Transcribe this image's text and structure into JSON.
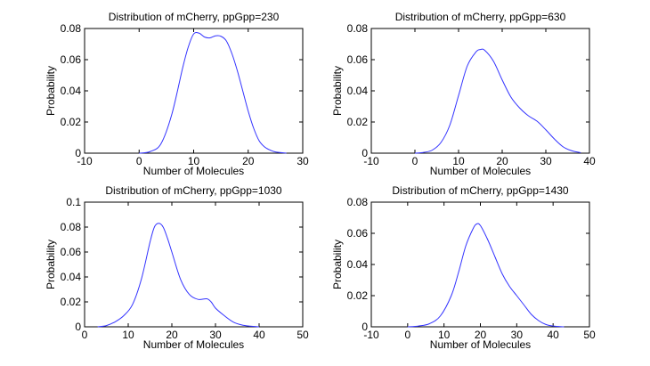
{
  "chart_data": [
    {
      "type": "line",
      "title": "Distribution of mCherry, ppGpp=230",
      "xlabel": "Number of Molecules",
      "ylabel": "Probability",
      "xlim": [
        -10,
        30
      ],
      "ylim": [
        0,
        0.08
      ],
      "xticks": [
        "-10",
        "0",
        "10",
        "20",
        "30"
      ],
      "yticks": [
        "0",
        "0.02",
        "0.04",
        "0.06",
        "0.08"
      ],
      "line_color": "#3333ff",
      "grid": false,
      "x": [
        0,
        2,
        4,
        6,
        8,
        9,
        10,
        11,
        12,
        13,
        14,
        15,
        16,
        17,
        18,
        19,
        20,
        21,
        22,
        23,
        24,
        25,
        27
      ],
      "y": [
        0.0,
        0.001,
        0.006,
        0.025,
        0.055,
        0.068,
        0.0765,
        0.077,
        0.0745,
        0.074,
        0.0753,
        0.075,
        0.072,
        0.064,
        0.053,
        0.04,
        0.027,
        0.016,
        0.008,
        0.004,
        0.002,
        0.0008,
        0.0
      ]
    },
    {
      "type": "line",
      "title": "Distribution of mCherry, ppGpp=630",
      "xlabel": "Number of Molecules",
      "ylabel": "Probability",
      "xlim": [
        -10,
        40
      ],
      "ylim": [
        0,
        0.08
      ],
      "xticks": [
        "-10",
        "0",
        "10",
        "20",
        "30",
        "40"
      ],
      "yticks": [
        "0",
        "0.02",
        "0.04",
        "0.06",
        "0.08"
      ],
      "line_color": "#3333ff",
      "grid": false,
      "x": [
        0,
        2,
        4,
        6,
        8,
        10,
        12,
        14,
        15,
        16,
        18,
        20,
        22,
        24,
        26,
        28,
        30,
        32,
        34,
        36,
        38
      ],
      "y": [
        0.0,
        0.0005,
        0.002,
        0.007,
        0.018,
        0.037,
        0.056,
        0.065,
        0.0665,
        0.066,
        0.059,
        0.047,
        0.036,
        0.029,
        0.024,
        0.0205,
        0.015,
        0.009,
        0.004,
        0.0015,
        0.0003
      ]
    },
    {
      "type": "line",
      "title": "Distribution of mCherry, ppGpp=1030",
      "xlabel": "Number of Molecules",
      "ylabel": "Probability",
      "xlim": [
        0,
        50
      ],
      "ylim": [
        0,
        0.1
      ],
      "xticks": [
        "0",
        "10",
        "20",
        "30",
        "40",
        "50"
      ],
      "yticks": [
        "0",
        "0.02",
        "0.04",
        "0.06",
        "0.08",
        "0.1"
      ],
      "line_color": "#3333ff",
      "grid": false,
      "x": [
        3,
        5,
        7,
        9,
        11,
        13,
        15,
        16,
        17,
        18,
        19,
        20,
        22,
        24,
        26,
        28,
        29,
        30,
        32,
        34,
        36,
        38,
        40
      ],
      "y": [
        0.0,
        0.001,
        0.004,
        0.009,
        0.018,
        0.038,
        0.068,
        0.08,
        0.083,
        0.08,
        0.071,
        0.06,
        0.038,
        0.026,
        0.022,
        0.0225,
        0.02,
        0.015,
        0.009,
        0.004,
        0.0015,
        0.0005,
        0.0
      ]
    },
    {
      "type": "line",
      "title": "Distribution of mCherry, ppGpp=1430",
      "xlabel": "Number of Molecules",
      "ylabel": "Probability",
      "xlim": [
        -10,
        50
      ],
      "ylim": [
        0,
        0.08
      ],
      "xticks": [
        "-10",
        "0",
        "10",
        "20",
        "30",
        "40",
        "50"
      ],
      "yticks": [
        "0",
        "0.02",
        "0.04",
        "0.06",
        "0.08"
      ],
      "line_color": "#3333ff",
      "grid": false,
      "x": [
        0,
        3,
        6,
        9,
        12,
        14,
        16,
        18,
        19,
        20,
        22,
        24,
        26,
        28,
        30,
        32,
        34,
        36,
        38,
        40,
        43
      ],
      "y": [
        0.0,
        0.0005,
        0.002,
        0.007,
        0.02,
        0.035,
        0.052,
        0.063,
        0.066,
        0.065,
        0.056,
        0.045,
        0.034,
        0.026,
        0.02,
        0.014,
        0.008,
        0.004,
        0.0015,
        0.0005,
        0.0
      ]
    }
  ]
}
